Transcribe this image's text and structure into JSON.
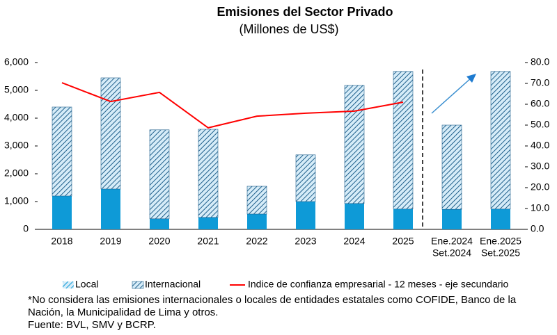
{
  "chart_data": {
    "type": "bar-line",
    "title": "Emisiones del Sector Privado",
    "subtitle": "(Millones de US$)",
    "categories": [
      "2018",
      "2019",
      "2020",
      "2021",
      "2022",
      "2023",
      "2024",
      "2025",
      [
        "Ene.2024",
        "Set.2024"
      ],
      [
        "Ene.2025",
        "Set.2025"
      ]
    ],
    "series": [
      {
        "name": "Local",
        "type": "bar",
        "color": "#0e9ad7",
        "values": [
          1200,
          1450,
          380,
          430,
          550,
          1000,
          930,
          730,
          720,
          730
        ]
      },
      {
        "name": "Internacional",
        "type": "bar",
        "color": "#1f5f8b",
        "values": [
          3200,
          4000,
          3200,
          3170,
          1000,
          1680,
          4250,
          4950,
          3030,
          4950
        ]
      },
      {
        "name": "Indice de confianza empresarial - 12 meses - eje secundario",
        "type": "line",
        "axis": "y2",
        "color": "#ff0000",
        "values": [
          70.3,
          61.3,
          65.7,
          48.7,
          54.3,
          55.7,
          56.7,
          61.0,
          null,
          null
        ]
      }
    ],
    "ylim": [
      0,
      6000
    ],
    "yticks": [
      0,
      {
        "value": 1000,
        "label": "1,000"
      },
      {
        "value": 2000,
        "label": "2,000"
      },
      {
        "value": 3000,
        "label": "3,000"
      },
      {
        "value": 4000,
        "label": "4,000"
      },
      {
        "value": 5000,
        "label": "5,000"
      },
      {
        "value": 6000,
        "label": "6,000"
      }
    ],
    "y2lim": [
      0,
      80
    ],
    "y2ticks": [
      {
        "value": 0,
        "label": "0.0"
      },
      {
        "value": 10,
        "label": "10.0"
      },
      {
        "value": 20,
        "label": "20.0"
      },
      {
        "value": 30,
        "label": "30.0"
      },
      {
        "value": 40,
        "label": "40.0"
      },
      {
        "value": 50,
        "label": "50.0"
      },
      {
        "value": 60,
        "label": "60.0"
      },
      {
        "value": 70,
        "label": "70.0"
      },
      {
        "value": 80,
        "label": "80.0"
      }
    ],
    "notes": [
      "*No considera las emisiones internacionales o locales de entidades estatales como COFIDE, Banco de la",
      "Nación, la Municipalidad de Lima y otros.",
      "Fuente: BVL, SMV y BCRP."
    ]
  }
}
